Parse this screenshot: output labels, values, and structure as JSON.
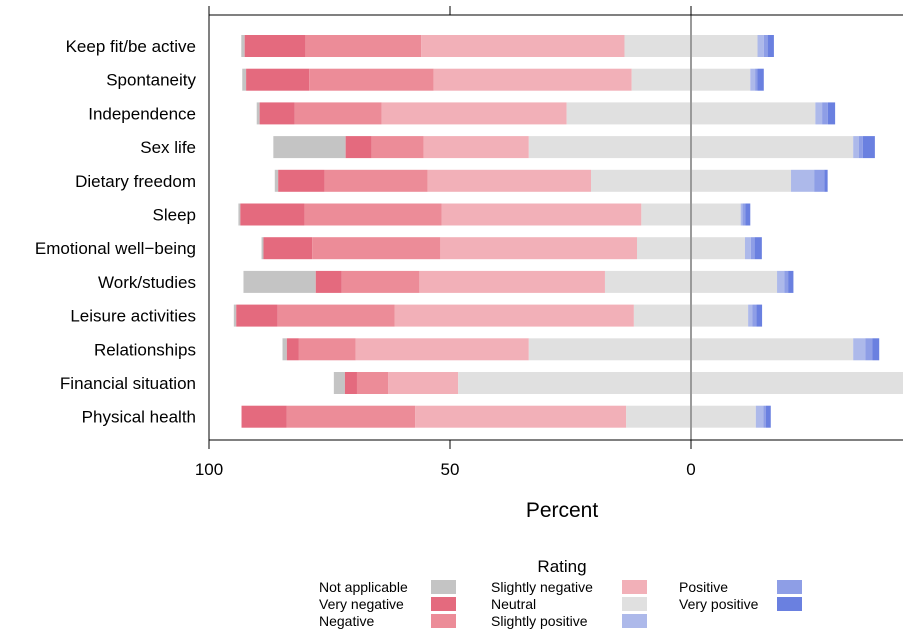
{
  "chart_data": {
    "type": "bar",
    "orientation": "horizontal",
    "stacked": "diverging",
    "title": "",
    "xlabel": "Percent",
    "ylabel": "",
    "x_axis_reversed": true,
    "x_ticks": [
      100,
      50,
      0
    ],
    "xlim": [
      100,
      -38
    ],
    "grid": false,
    "legend_position": "bottom",
    "legend_title": "Rating",
    "categories": [
      "Keep fit/be active",
      "Spontaneity",
      "Independence",
      "Sex life",
      "Dietary freedom",
      "Sleep",
      "Emotional well−being",
      "Work/studies",
      "Leisure activities",
      "Relationships",
      "Financial situation",
      "Physical health"
    ],
    "series": [
      {
        "name": "Not applicable",
        "color": "#c4c4c4",
        "values": [
          0.7,
          0.8,
          0.6,
          15.0,
          0.7,
          0.4,
          0.4,
          15.0,
          0.5,
          0.9,
          2.3,
          0.0
        ]
      },
      {
        "name": "Very negative",
        "color": "#e46a7e",
        "values": [
          12.6,
          13.1,
          7.3,
          5.4,
          9.6,
          13.3,
          10.1,
          5.4,
          8.6,
          2.5,
          2.5,
          9.4
        ]
      },
      {
        "name": "Negative",
        "color": "#ec8c98",
        "values": [
          24.0,
          25.8,
          18.0,
          10.8,
          21.4,
          28.5,
          26.6,
          16.1,
          24.3,
          11.8,
          6.5,
          26.6
        ]
      },
      {
        "name": "Slightly negative",
        "color": "#f2b0b8",
        "values": [
          42.2,
          41.1,
          38.4,
          21.8,
          33.9,
          41.4,
          40.8,
          38.5,
          49.6,
          35.9,
          14.5,
          43.8
        ]
      },
      {
        "name": "Neutral",
        "color": "#e0e0e0",
        "values": [
          27.6,
          24.6,
          51.6,
          67.3,
          41.5,
          20.6,
          22.4,
          35.7,
          23.7,
          67.3,
          96.6,
          26.9
        ]
      },
      {
        "name": "Slightly positive",
        "color": "#adb9ea",
        "values": [
          1.3,
          1.0,
          1.4,
          1.2,
          4.8,
          0.4,
          1.2,
          1.5,
          0.9,
          2.5,
          0.0,
          1.6
        ]
      },
      {
        "name": "Positive",
        "color": "#8e9ee6",
        "values": [
          0.8,
          0.5,
          1.2,
          0.8,
          2.1,
          0.6,
          0.8,
          0.8,
          0.8,
          1.5,
          0.6,
          0.5
        ]
      },
      {
        "name": "Very positive",
        "color": "#6a80e0",
        "values": [
          1.3,
          1.3,
          1.5,
          2.5,
          0.7,
          1.0,
          1.5,
          1.1,
          1.2,
          1.4,
          1.2,
          1.0
        ]
      }
    ]
  }
}
